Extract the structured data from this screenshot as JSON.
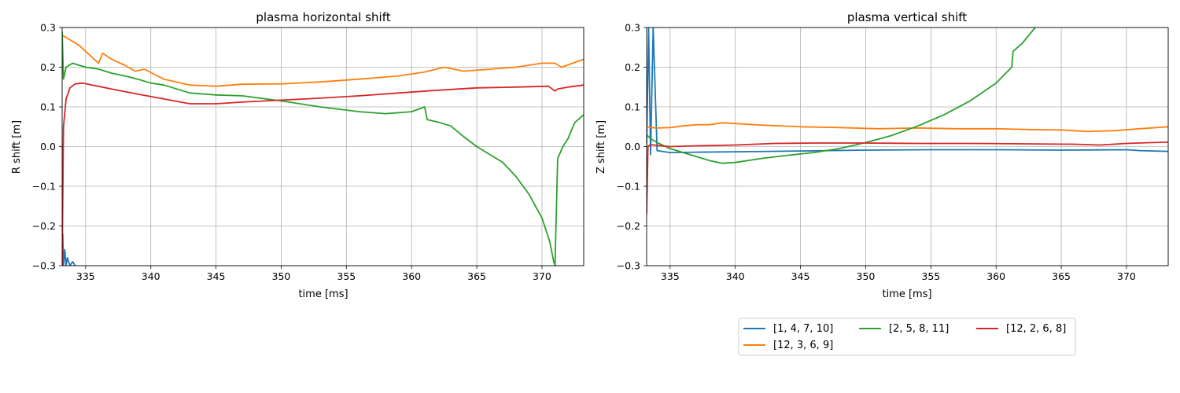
{
  "chart_data": [
    {
      "type": "line",
      "title": "plasma horizontal shift",
      "xlabel": "time [ms]",
      "ylabel": "R shift [m]",
      "xlim": [
        333.2,
        373.2
      ],
      "ylim": [
        -0.3,
        0.3
      ],
      "xticks": [
        335,
        340,
        345,
        350,
        355,
        360,
        365,
        370
      ],
      "yticks": [
        -0.3,
        -0.2,
        -0.1,
        0.0,
        0.1,
        0.2,
        0.3
      ],
      "ytick_labels": [
        "−0.3",
        "−0.2",
        "−0.1",
        "0.0",
        "0.1",
        "0.2",
        "0.3"
      ],
      "grid": true,
      "series": [
        {
          "name": "[1, 4, 7, 10]",
          "color": "#1f77b4",
          "x": [
            333.2,
            333.25,
            333.3,
            333.4,
            333.5,
            333.6,
            333.8,
            334.0,
            334.2
          ],
          "y": [
            -0.3,
            -0.22,
            -0.3,
            -0.26,
            -0.3,
            -0.28,
            -0.3,
            -0.29,
            -0.3
          ]
        },
        {
          "name": "[12, 3, 6, 9]",
          "color": "#ff7f0e",
          "x": [
            333.2,
            333.5,
            334.5,
            335.5,
            336.0,
            336.3,
            337.0,
            338.0,
            338.8,
            339.5,
            341.0,
            343.0,
            345.0,
            347.0,
            350.0,
            353.0,
            356.0,
            359.0,
            361.0,
            362.5,
            364.0,
            366.0,
            368.0,
            370.0,
            371.0,
            371.5,
            373.2
          ],
          "y": [
            0.28,
            0.275,
            0.255,
            0.225,
            0.21,
            0.235,
            0.22,
            0.205,
            0.19,
            0.195,
            0.17,
            0.155,
            0.152,
            0.157,
            0.158,
            0.163,
            0.17,
            0.178,
            0.188,
            0.2,
            0.19,
            0.195,
            0.2,
            0.21,
            0.21,
            0.2,
            0.22
          ]
        },
        {
          "name": "[2, 5, 8, 11]",
          "color": "#2ca02c",
          "x": [
            333.2,
            333.3,
            333.5,
            334.0,
            334.5,
            335.0,
            336.0,
            337.0,
            338.0,
            339.0,
            340.0,
            341.0,
            343.0,
            345.0,
            347.0,
            350.0,
            353.0,
            356.0,
            358.0,
            360.0,
            361.0,
            361.2,
            362.0,
            363.0,
            364.0,
            365.0,
            366.0,
            367.0,
            368.0,
            369.0,
            370.0,
            370.6,
            370.9,
            371.0,
            371.2,
            371.6,
            372.0,
            372.5,
            373.2
          ],
          "y": [
            0.29,
            0.17,
            0.2,
            0.21,
            0.205,
            0.2,
            0.195,
            0.185,
            0.178,
            0.17,
            0.16,
            0.155,
            0.135,
            0.13,
            0.128,
            0.115,
            0.1,
            0.088,
            0.083,
            0.088,
            0.1,
            0.068,
            0.062,
            0.052,
            0.025,
            0.0,
            -0.02,
            -0.04,
            -0.075,
            -0.12,
            -0.18,
            -0.24,
            -0.29,
            -0.3,
            -0.03,
            0.0,
            0.02,
            0.06,
            0.08
          ]
        },
        {
          "name": "[12, 2, 6, 8]",
          "color": "#d62728",
          "x": [
            333.2,
            333.3,
            333.5,
            333.8,
            334.2,
            334.8,
            335.5,
            337.0,
            339.0,
            341.0,
            343.0,
            345.0,
            347.0,
            350.0,
            353.0,
            356.0,
            359.0,
            362.0,
            365.0,
            368.0,
            370.5,
            371.0,
            371.2,
            372.0,
            373.2
          ],
          "y": [
            -0.3,
            0.05,
            0.12,
            0.148,
            0.158,
            0.16,
            0.155,
            0.145,
            0.132,
            0.12,
            0.108,
            0.108,
            0.112,
            0.117,
            0.122,
            0.128,
            0.135,
            0.142,
            0.148,
            0.15,
            0.152,
            0.14,
            0.145,
            0.15,
            0.155
          ]
        }
      ]
    },
    {
      "type": "line",
      "title": "plasma vertical shift",
      "xlabel": "time [ms]",
      "ylabel": "Z shift [m]",
      "xlim": [
        333.2,
        373.2
      ],
      "ylim": [
        -0.3,
        0.3
      ],
      "xticks": [
        335,
        340,
        345,
        350,
        355,
        360,
        365,
        370
      ],
      "yticks": [
        -0.3,
        -0.2,
        -0.1,
        0.0,
        0.1,
        0.2,
        0.3
      ],
      "ytick_labels": [
        "−0.3",
        "−0.2",
        "−0.1",
        "0.0",
        "0.1",
        "0.2",
        "0.3"
      ],
      "grid": true,
      "series": [
        {
          "name": "[1, 4, 7, 10]",
          "color": "#1f77b4",
          "x": [
            333.2,
            333.35,
            333.5,
            333.7,
            334.0,
            335.0,
            337.0,
            340.0,
            345.0,
            350.0,
            355.0,
            360.0,
            365.0,
            370.0,
            371.0,
            373.2
          ],
          "y": [
            0.0,
            0.3,
            -0.02,
            0.3,
            -0.01,
            -0.015,
            -0.014,
            -0.013,
            -0.011,
            -0.009,
            -0.008,
            -0.008,
            -0.009,
            -0.008,
            -0.01,
            -0.012
          ]
        },
        {
          "name": "[12, 3, 6, 9]",
          "color": "#ff7f0e",
          "x": [
            333.2,
            333.5,
            334.0,
            335.0,
            336.0,
            337.0,
            338.0,
            339.0,
            340.0,
            342.0,
            345.0,
            348.0,
            351.0,
            354.0,
            357.0,
            360.0,
            362.5,
            365.0,
            367.0,
            369.0,
            371.0,
            373.2
          ],
          "y": [
            0.05,
            0.048,
            0.047,
            0.048,
            0.052,
            0.055,
            0.055,
            0.06,
            0.058,
            0.054,
            0.05,
            0.048,
            0.045,
            0.047,
            0.045,
            0.045,
            0.043,
            0.042,
            0.038,
            0.04,
            0.045,
            0.05
          ]
        },
        {
          "name": "[2, 5, 8, 11]",
          "color": "#2ca02c",
          "x": [
            333.2,
            333.5,
            334.0,
            335.0,
            336.0,
            337.0,
            338.0,
            339.0,
            340.0,
            342.0,
            344.0,
            346.0,
            348.0,
            350.0,
            352.0,
            354.0,
            356.0,
            358.0,
            360.0,
            361.2,
            361.3,
            362.0,
            363.0
          ],
          "y": [
            0.03,
            0.02,
            0.01,
            -0.005,
            -0.015,
            -0.025,
            -0.035,
            -0.042,
            -0.04,
            -0.03,
            -0.022,
            -0.015,
            -0.005,
            0.01,
            0.028,
            0.052,
            0.08,
            0.115,
            0.16,
            0.2,
            0.24,
            0.26,
            0.3
          ]
        },
        {
          "name": "[12, 2, 6, 8]",
          "color": "#d62728",
          "x": [
            333.2,
            333.3,
            333.5,
            334.0,
            335.0,
            337.0,
            340.0,
            343.0,
            346.0,
            350.0,
            354.0,
            358.0,
            362.0,
            366.0,
            368.0,
            370.0,
            372.0,
            373.2
          ],
          "y": [
            -0.17,
            0.0,
            0.005,
            0.003,
            0.0,
            0.002,
            0.004,
            0.008,
            0.009,
            0.009,
            0.008,
            0.008,
            0.007,
            0.006,
            0.004,
            0.008,
            0.01,
            0.011
          ]
        }
      ]
    }
  ],
  "legend": {
    "placement": "lower-right",
    "entries": [
      {
        "label": "[1, 4, 7, 10]",
        "color": "#1f77b4"
      },
      {
        "label": "[2, 5, 8, 11]",
        "color": "#2ca02c"
      },
      {
        "label": "[12, 2, 6, 8]",
        "color": "#d62728"
      },
      {
        "label": "[12, 3, 6, 9]",
        "color": "#ff7f0e"
      }
    ]
  }
}
